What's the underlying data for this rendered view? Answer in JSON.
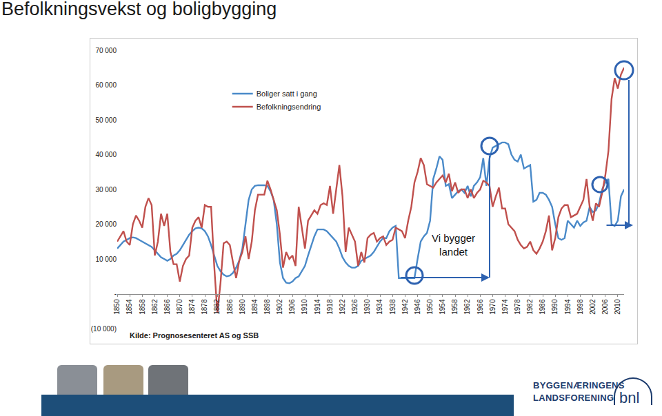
{
  "chart_data": {
    "type": "line",
    "title": "Befolkningsvekst og boligbygging",
    "x": [
      1850,
      1851,
      1852,
      1853,
      1854,
      1855,
      1856,
      1857,
      1858,
      1859,
      1860,
      1861,
      1862,
      1863,
      1864,
      1865,
      1866,
      1867,
      1868,
      1869,
      1870,
      1871,
      1872,
      1873,
      1874,
      1875,
      1876,
      1877,
      1878,
      1879,
      1880,
      1881,
      1882,
      1883,
      1884,
      1885,
      1886,
      1887,
      1888,
      1889,
      1890,
      1891,
      1892,
      1893,
      1894,
      1895,
      1896,
      1897,
      1898,
      1899,
      1900,
      1901,
      1902,
      1903,
      1904,
      1905,
      1906,
      1907,
      1908,
      1909,
      1910,
      1911,
      1912,
      1913,
      1914,
      1915,
      1916,
      1917,
      1918,
      1919,
      1920,
      1921,
      1922,
      1923,
      1924,
      1925,
      1926,
      1927,
      1928,
      1929,
      1930,
      1931,
      1932,
      1933,
      1934,
      1935,
      1936,
      1937,
      1938,
      1939,
      1940,
      1941,
      1942,
      1943,
      1944,
      1945,
      1946,
      1947,
      1948,
      1949,
      1950,
      1951,
      1952,
      1953,
      1954,
      1955,
      1956,
      1957,
      1958,
      1959,
      1960,
      1961,
      1962,
      1963,
      1964,
      1965,
      1966,
      1967,
      1968,
      1969,
      1970,
      1971,
      1972,
      1973,
      1974,
      1975,
      1976,
      1977,
      1978,
      1979,
      1980,
      1981,
      1982,
      1983,
      1984,
      1985,
      1986,
      1987,
      1988,
      1989,
      1990,
      1991,
      1992,
      1993,
      1994,
      1995,
      1996,
      1997,
      1998,
      1999,
      2000,
      2001,
      2002,
      2003,
      2004,
      2005,
      2006,
      2007,
      2008,
      2009,
      2010,
      2011,
      2012
    ],
    "xlim": [
      1850,
      2012
    ],
    "xticks": [
      1850,
      1854,
      1858,
      1862,
      1866,
      1870,
      1874,
      1878,
      1882,
      1886,
      1890,
      1894,
      1898,
      1902,
      1906,
      1910,
      1914,
      1918,
      1922,
      1926,
      1930,
      1934,
      1938,
      1942,
      1946,
      1950,
      1954,
      1958,
      1962,
      1966,
      1970,
      1974,
      1978,
      1982,
      1986,
      1990,
      1994,
      1998,
      2002,
      2006,
      2010
    ],
    "ylim": [
      -10000,
      70000
    ],
    "yticks": [
      {
        "value": -10000,
        "label": "(10 000)"
      },
      {
        "value": 0,
        "label": "-"
      },
      {
        "value": 10000,
        "label": "10 000"
      },
      {
        "value": 20000,
        "label": "20 000"
      },
      {
        "value": 30000,
        "label": "30 000"
      },
      {
        "value": 40000,
        "label": "40 000"
      },
      {
        "value": 50000,
        "label": "50 000"
      },
      {
        "value": 60000,
        "label": "60 000"
      },
      {
        "value": 70000,
        "label": "70 000"
      }
    ],
    "grid": false,
    "legend": "upper left",
    "series": [
      {
        "name": "Boliger satt i gang",
        "color": "#4a8ac9",
        "values": [
          13000,
          14000,
          15000,
          15500,
          16000,
          16200,
          16000,
          15500,
          15000,
          14500,
          14000,
          13500,
          12500,
          11500,
          10500,
          10000,
          9500,
          10000,
          11000,
          11500,
          12500,
          14000,
          15500,
          17000,
          18000,
          18800,
          19000,
          18800,
          18000,
          16500,
          14000,
          11000,
          8000,
          6500,
          5500,
          5000,
          5200,
          6000,
          7500,
          9500,
          13000,
          20000,
          27000,
          30000,
          31000,
          31200,
          31200,
          31200,
          31000,
          29500,
          27000,
          20000,
          9000,
          4500,
          3200,
          3000,
          3500,
          4500,
          5000,
          6500,
          8000,
          11000,
          14000,
          16500,
          18500,
          18500,
          18500,
          18000,
          17000,
          16000,
          15000,
          13000,
          10500,
          9000,
          8000,
          7500,
          7500,
          8000,
          9500,
          10000,
          10500,
          11000,
          12000,
          13500,
          15000,
          16000,
          16000,
          18000,
          19000,
          19500,
          4500,
          4500,
          4500,
          4500,
          4500,
          4500,
          10000,
          15000,
          16500,
          17500,
          21000,
          33000,
          36000,
          39500,
          38500,
          31000,
          31500,
          27500,
          28500,
          29500,
          30000,
          29000,
          31000,
          28000,
          31000,
          32000,
          33500,
          39000,
          31000,
          39000,
          42000,
          42500,
          43000,
          43500,
          43500,
          43000,
          40000,
          38500,
          38000,
          40000,
          36000,
          36500,
          37000,
          26500,
          27000,
          29000,
          29000,
          28500,
          27000,
          25000,
          20000,
          16000,
          15500,
          16000,
          21000,
          20000,
          19000,
          21000,
          19500,
          20500,
          21000,
          25000,
          23500,
          24000,
          26000,
          30000,
          32000,
          33000,
          20000,
          19500,
          21000,
          28000,
          30000
        ]
      },
      {
        "name": "Befolkningsendring",
        "color": "#c0504d",
        "values": [
          15000,
          16500,
          18000,
          15000,
          14000,
          20000,
          22500,
          21000,
          19000,
          25000,
          27500,
          25500,
          11000,
          15000,
          23000,
          19500,
          23000,
          12000,
          8500,
          8500,
          3500,
          8000,
          10000,
          11000,
          19000,
          21000,
          22000,
          19000,
          25500,
          25000,
          25000,
          8000,
          -5500,
          3000,
          14500,
          15000,
          14000,
          9000,
          4500,
          9500,
          12000,
          16500,
          10000,
          15000,
          24000,
          28500,
          28500,
          28500,
          32500,
          30000,
          27000,
          24000,
          17000,
          7500,
          12000,
          10000,
          11000,
          8000,
          25000,
          19000,
          13000,
          21000,
          22500,
          24000,
          23000,
          25500,
          26000,
          25500,
          31000,
          23000,
          30000,
          37000,
          28000,
          12000,
          19000,
          17000,
          15000,
          8000,
          12000,
          9000,
          16000,
          17000,
          17500,
          15000,
          16000,
          16500,
          14000,
          15000,
          15500,
          19000,
          18500,
          18000,
          16000,
          21000,
          25000,
          32000,
          35000,
          39000,
          37000,
          31500,
          31000,
          30500,
          32000,
          33000,
          34000,
          32000,
          34500,
          29500,
          32000,
          29000,
          30000,
          30000,
          27500,
          30000,
          27500,
          29000,
          30000,
          32500,
          32000,
          31000,
          25000,
          28000,
          30500,
          24500,
          24500,
          20000,
          19000,
          18000,
          15500,
          14000,
          13000,
          13500,
          15000,
          12500,
          11500,
          13000,
          15000,
          18000,
          22500,
          12500,
          16000,
          22000,
          24500,
          25500,
          25500,
          22000,
          22500,
          23000,
          25000,
          27000,
          33000,
          25000,
          21000,
          26000,
          25000,
          29000,
          34000,
          41000,
          56000,
          62000,
          59000,
          63000,
          65000
        ]
      }
    ],
    "annotations": [
      {
        "lines": [
          "Vi bygger",
          "landet"
        ]
      }
    ],
    "source": "Kilde: Prognosesenteret AS og SSB"
  },
  "footer": {
    "logo_lines": [
      "BYGGENÆRINGENS",
      "LANDSFORENING"
    ],
    "logo_mark": "bnl"
  }
}
